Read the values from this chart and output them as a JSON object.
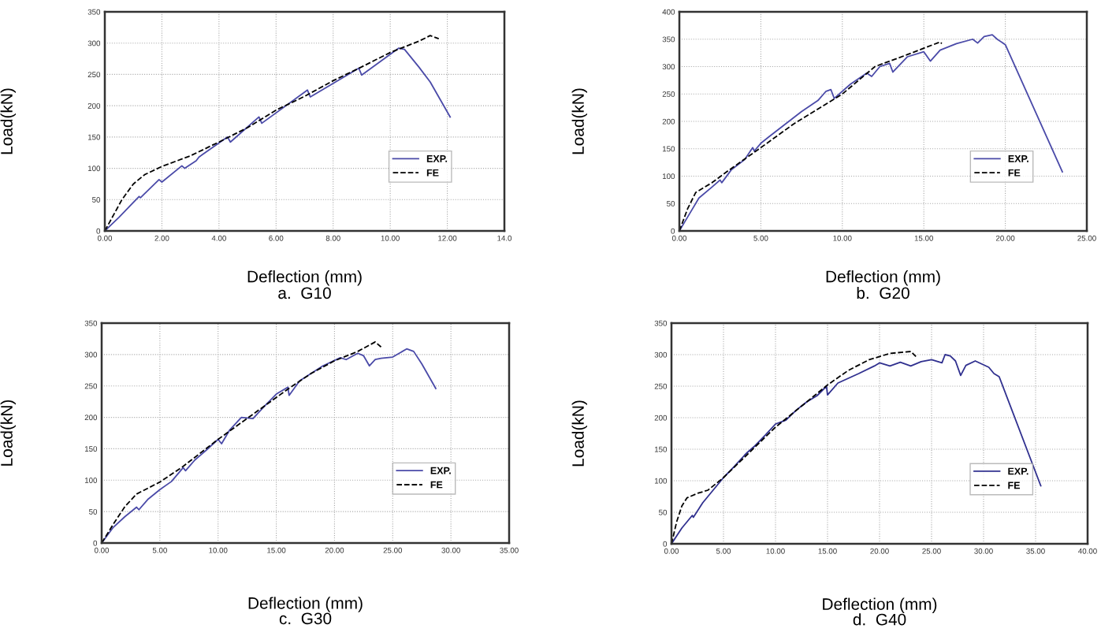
{
  "chart_data": [
    {
      "type": "line",
      "title": "a.  G10",
      "xlabel": "Deflection (mm)",
      "ylabel": "Load(kN)",
      "xlim": [
        0,
        14
      ],
      "ylim": [
        0,
        350
      ],
      "xticks": [
        {
          "value": 0,
          "label": "0.00"
        },
        {
          "value": 2,
          "label": "2.00"
        },
        {
          "value": 4,
          "label": "4.00"
        },
        {
          "value": 6,
          "label": "6.00"
        },
        {
          "value": 8,
          "label": "8.00"
        },
        {
          "value": 10,
          "label": "10.00"
        },
        {
          "value": 12,
          "label": "12.00"
        },
        {
          "value": 14,
          "label": "14.0"
        }
      ],
      "yticks": [
        0,
        50,
        100,
        150,
        200,
        250,
        300,
        350
      ],
      "grid": true,
      "legend": "lower right",
      "series": [
        {
          "name": "EXP.",
          "color": "#4a4aa8",
          "line_style": "solid",
          "x": [
            0,
            0.5,
            1.2,
            1.25,
            1.9,
            2.0,
            2.7,
            2.8,
            3.2,
            3.3,
            4.3,
            4.4,
            5.4,
            5.5,
            7.1,
            7.2,
            8.9,
            9.0,
            10.3,
            10.5,
            11.0,
            11.4,
            12.1
          ],
          "values": [
            0,
            22,
            55,
            53,
            82,
            78,
            104,
            100,
            112,
            118,
            150,
            142,
            182,
            172,
            225,
            214,
            260,
            249,
            292,
            290,
            262,
            238,
            182
          ]
        },
        {
          "name": "FE",
          "color": "#000000",
          "line_style": "dashed",
          "x": [
            0,
            0.3,
            0.6,
            1.0,
            1.4,
            2.0,
            3.0,
            4.0,
            5.0,
            6.0,
            7.0,
            8.0,
            9.0,
            10.0,
            11.0,
            11.4,
            11.7
          ],
          "values": [
            0,
            25,
            50,
            75,
            90,
            103,
            120,
            142,
            165,
            193,
            215,
            240,
            262,
            285,
            303,
            312,
            307
          ]
        }
      ]
    },
    {
      "type": "line",
      "title": "b.  G20",
      "xlabel": "Deflection (mm)",
      "ylabel": "Load(kN)",
      "xlim": [
        0,
        25
      ],
      "ylim": [
        0,
        400
      ],
      "xticks": [
        {
          "value": 0,
          "label": "0.00"
        },
        {
          "value": 5,
          "label": "5.00"
        },
        {
          "value": 10,
          "label": "10.00"
        },
        {
          "value": 15,
          "label": "15.00"
        },
        {
          "value": 20,
          "label": "20.00"
        },
        {
          "value": 25,
          "label": "25.00"
        }
      ],
      "yticks": [
        0,
        50,
        100,
        150,
        200,
        250,
        300,
        350,
        400
      ],
      "grid": true,
      "legend": "lower right",
      "series": [
        {
          "name": "EXP.",
          "color": "#4a4aa8",
          "line_style": "solid",
          "x": [
            0,
            0.5,
            1.2,
            2.0,
            2.5,
            2.6,
            3.2,
            4.0,
            4.5,
            4.6,
            5.0,
            5.5,
            6.5,
            7.5,
            8.5,
            9.0,
            9.3,
            9.5,
            10.5,
            11.5,
            11.8,
            12.3,
            12.9,
            13.1,
            14.0,
            15.0,
            15.4,
            16.0,
            17.0,
            18.0,
            18.3,
            18.7,
            19.2,
            19.5,
            20.0,
            23.5
          ],
          "values": [
            0,
            25,
            60,
            80,
            93,
            88,
            112,
            130,
            152,
            146,
            160,
            172,
            195,
            218,
            238,
            255,
            258,
            242,
            268,
            288,
            282,
            300,
            306,
            290,
            318,
            327,
            310,
            330,
            342,
            350,
            343,
            355,
            358,
            350,
            340,
            108
          ]
        },
        {
          "name": "FE",
          "color": "#000000",
          "line_style": "dashed",
          "x": [
            0,
            0.5,
            1.0,
            2.0,
            3.0,
            5.0,
            7.0,
            10.0,
            12.0,
            14.0,
            16.0,
            16.1
          ],
          "values": [
            0,
            40,
            70,
            88,
            110,
            152,
            195,
            250,
            300,
            322,
            345,
            342
          ]
        }
      ]
    },
    {
      "type": "line",
      "title": "c.  G30",
      "xlabel": "Deflection (mm)",
      "ylabel": "Load(kN)",
      "xlim": [
        0,
        35
      ],
      "ylim": [
        0,
        350
      ],
      "xticks": [
        {
          "value": 0,
          "label": "0.00"
        },
        {
          "value": 5,
          "label": "5.00"
        },
        {
          "value": 10,
          "label": "10.00"
        },
        {
          "value": 15,
          "label": "15.00"
        },
        {
          "value": 20,
          "label": "20.00"
        },
        {
          "value": 25,
          "label": "25.00"
        },
        {
          "value": 30,
          "label": "30.00"
        },
        {
          "value": 35,
          "label": "35.00"
        }
      ],
      "yticks": [
        0,
        50,
        100,
        150,
        200,
        250,
        300,
        350
      ],
      "grid": true,
      "legend": "lower right",
      "series": [
        {
          "name": "EXP.",
          "color": "#4a4aa8",
          "line_style": "solid",
          "x": [
            0,
            1,
            2,
            3,
            3.2,
            4,
            5,
            6,
            7,
            7.2,
            8,
            9,
            10,
            10.3,
            11,
            12,
            13,
            14,
            15,
            16,
            16.1,
            17,
            18,
            19,
            20.5,
            21,
            22,
            22.5,
            23,
            23.5,
            24,
            25,
            26.2,
            26.8,
            27.5,
            28.7
          ],
          "values": [
            0,
            25,
            42,
            57,
            53,
            70,
            85,
            98,
            120,
            115,
            132,
            148,
            165,
            158,
            180,
            200,
            198,
            218,
            237,
            248,
            235,
            258,
            270,
            282,
            295,
            292,
            302,
            298,
            282,
            292,
            294,
            296,
            309,
            305,
            285,
            246
          ]
        },
        {
          "name": "FE",
          "color": "#000000",
          "line_style": "dashed",
          "x": [
            0,
            1,
            2,
            3,
            5,
            7,
            10,
            13,
            16,
            18,
            20,
            22,
            23.5,
            24
          ],
          "values": [
            0,
            30,
            58,
            78,
            97,
            122,
            165,
            205,
            245,
            270,
            290,
            305,
            320,
            312
          ]
        }
      ]
    },
    {
      "type": "line",
      "title": "d.  G40",
      "xlabel": "Deflection (mm)",
      "ylabel": "Load(kN)",
      "xlim": [
        0,
        40
      ],
      "ylim": [
        0,
        350
      ],
      "xticks": [
        {
          "value": 0,
          "label": "0.00"
        },
        {
          "value": 5,
          "label": "5.00"
        },
        {
          "value": 10,
          "label": "10.00"
        },
        {
          "value": 15,
          "label": "15.00"
        },
        {
          "value": 20,
          "label": "20.00"
        },
        {
          "value": 25,
          "label": "25.00"
        },
        {
          "value": 30,
          "label": "30.00"
        },
        {
          "value": 35,
          "label": "35.00"
        },
        {
          "value": 40,
          "label": "40.00"
        }
      ],
      "yticks": [
        0,
        50,
        100,
        150,
        200,
        250,
        300,
        350
      ],
      "grid": true,
      "legend": "lower right",
      "series": [
        {
          "name": "EXP.",
          "color": "#30308f",
          "line_style": "solid",
          "x": [
            0,
            1,
            2,
            2.1,
            3,
            4,
            5,
            6,
            7,
            7.3,
            8,
            9,
            10,
            11,
            12,
            13,
            14,
            14.9,
            15.0,
            16,
            18,
            19.5,
            20,
            21,
            22,
            23,
            24,
            25,
            26,
            26.3,
            26.8,
            27.3,
            27.8,
            28.3,
            29.2,
            30.5,
            31,
            31.5,
            35.5
          ],
          "values": [
            0,
            25,
            45,
            42,
            65,
            85,
            105,
            122,
            140,
            145,
            155,
            172,
            190,
            196,
            212,
            225,
            235,
            250,
            236,
            255,
            270,
            282,
            287,
            282,
            288,
            282,
            289,
            292,
            287,
            300,
            298,
            290,
            267,
            283,
            290,
            280,
            270,
            265,
            92
          ]
        },
        {
          "name": "FE",
          "color": "#000000",
          "line_style": "dashed",
          "x": [
            0,
            0.5,
            1,
            1.5,
            2.5,
            3.5,
            5,
            10,
            13,
            15,
            17,
            19,
            21,
            23,
            23.5
          ],
          "values": [
            0,
            35,
            60,
            73,
            80,
            85,
            105,
            185,
            225,
            252,
            275,
            292,
            302,
            305,
            297
          ]
        }
      ]
    }
  ]
}
